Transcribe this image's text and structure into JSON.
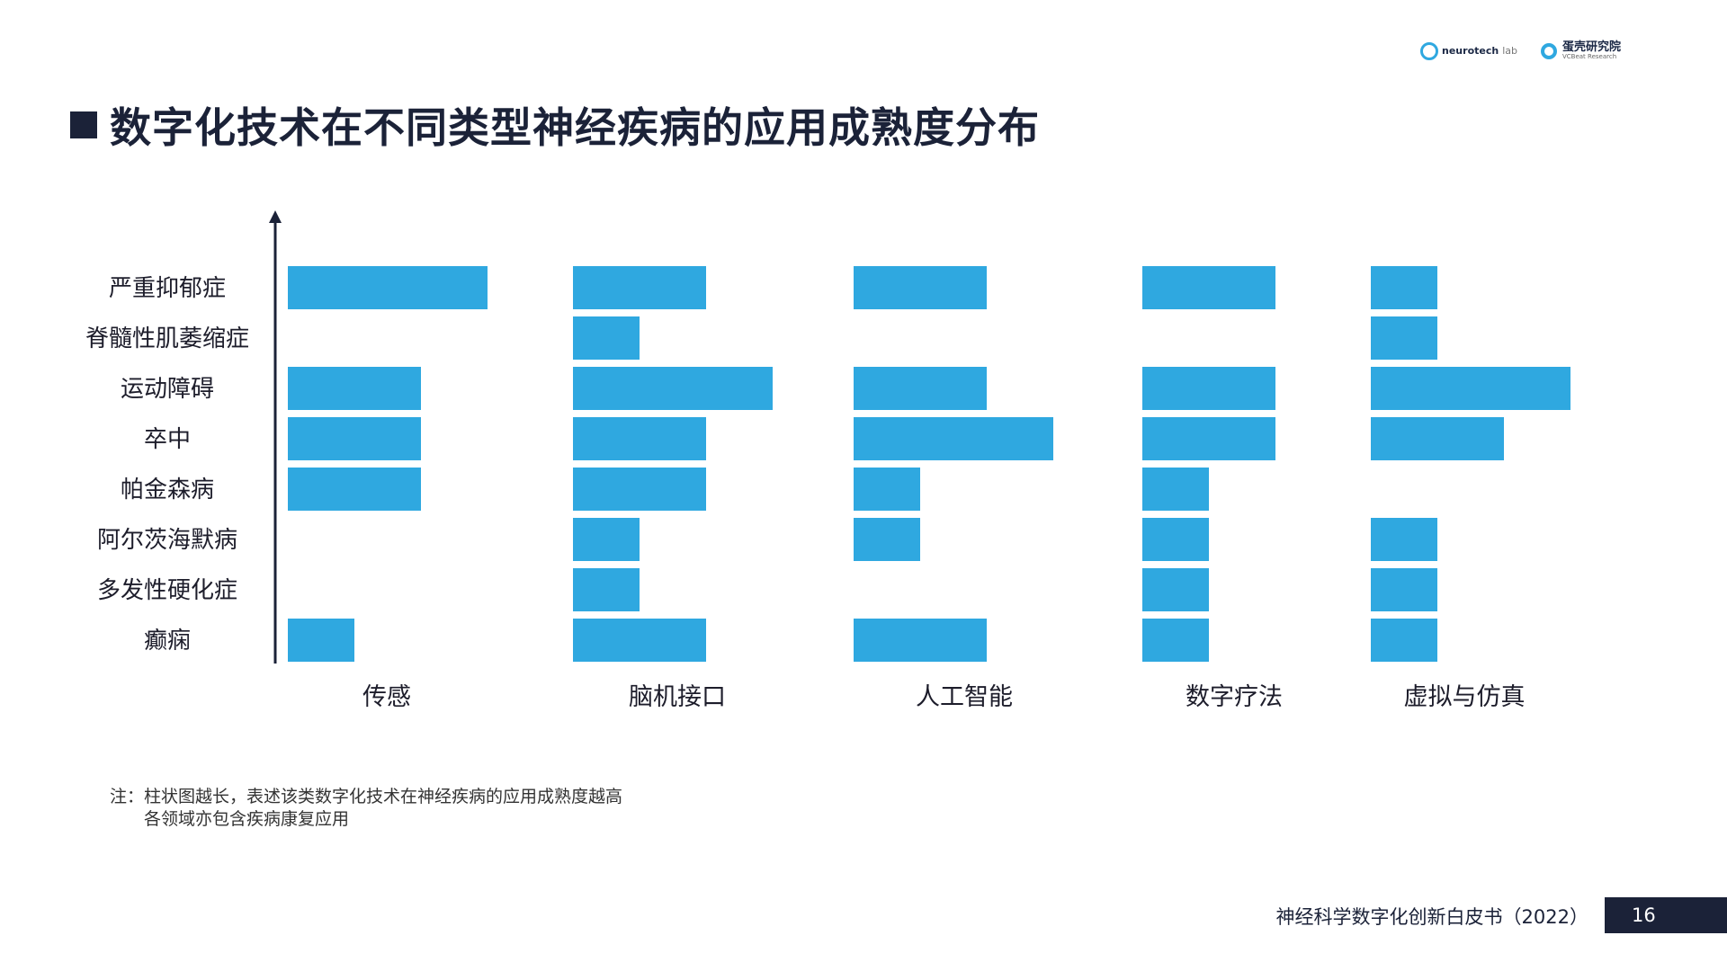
{
  "header": {
    "logo_neuro": "neurotech",
    "logo_neuro_lab": "lab",
    "logo_vc_cn": "蛋壳研究院",
    "logo_vc_en": "VCBeat Research"
  },
  "title": "数字化技术在不同类型神经疾病的应用成熟度分布",
  "chart_data": {
    "type": "bar",
    "orientation": "horizontal",
    "diseases": [
      "严重抑郁症",
      "脊髓性肌萎缩症",
      "运动障碍",
      "卒中",
      "帕金森病",
      "阿尔茨海默病",
      "多发性硬化症",
      "癫痫"
    ],
    "series": [
      {
        "name": "传感",
        "values": [
          3,
          0,
          2,
          2,
          2,
          0,
          0,
          1
        ]
      },
      {
        "name": "脑机接口",
        "values": [
          2,
          1,
          3,
          2,
          2,
          1,
          1,
          2
        ]
      },
      {
        "name": "人工智能",
        "values": [
          2,
          0,
          2,
          3,
          1,
          1,
          0,
          2
        ]
      },
      {
        "name": "数字疗法",
        "values": [
          2,
          0,
          2,
          2,
          1,
          1,
          1,
          1
        ]
      },
      {
        "name": "虚拟与仿真",
        "values": [
          1,
          1,
          3,
          2,
          0,
          1,
          1,
          1
        ]
      }
    ],
    "bar_color": "#2fa8e0",
    "axis_color": "#1b2238"
  },
  "note": {
    "line1": "注：柱状图越长，表述该类数字化技术在神经疾病的应用成熟度越高",
    "line2": "各领域亦包含疾病康复应用"
  },
  "footer": {
    "title": "神经科学数字化创新白皮书（2022）",
    "page": "16"
  }
}
